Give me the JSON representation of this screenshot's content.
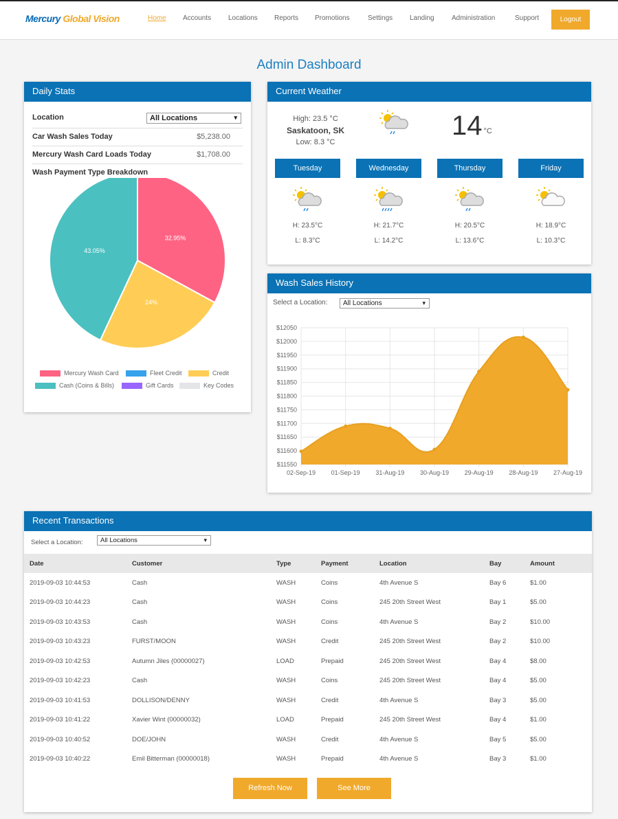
{
  "nav": {
    "logo_a": "Mercury",
    "logo_b": "Global Vision",
    "links": [
      "Home",
      "Accounts",
      "Locations",
      "Reports",
      "Promotions",
      "Settings",
      "Landing",
      "Administration",
      "Support"
    ],
    "active": "Home",
    "logout": "Logout"
  },
  "page_title": "Admin Dashboard",
  "daily": {
    "title": "Daily Stats",
    "location_label": "Location",
    "location_value": "All Locations",
    "rows": [
      {
        "label": "Car Wash Sales Today",
        "value": "$5,238.00"
      },
      {
        "label": "Mercury Wash Card Loads Today",
        "value": "$1,708.00"
      }
    ],
    "breakdown_label": "Wash Payment Type Breakdown",
    "pie": {
      "type": "pie",
      "slices": [
        {
          "name": "Mercury Wash Card",
          "value": 32.95,
          "label": "32.95%",
          "color": "#ff6384"
        },
        {
          "name": "Credit",
          "value": 24,
          "label": "24%",
          "color": "#ffcd56"
        },
        {
          "name": "Cash (Coins & Bills)",
          "value": 43.05,
          "label": "43.05%",
          "color": "#4bc0c0"
        }
      ],
      "legend": [
        {
          "name": "Mercury Wash Card",
          "color": "#ff6384"
        },
        {
          "name": "Fleet Credit",
          "color": "#36a2eb"
        },
        {
          "name": "Credit",
          "color": "#ffcd56"
        },
        {
          "name": "Cash (Coins & Bills)",
          "color": "#4bc0c0"
        },
        {
          "name": "Gift Cards",
          "color": "#9966ff"
        },
        {
          "name": "Key Codes",
          "color": "#e4e5e7"
        }
      ]
    }
  },
  "weather": {
    "title": "Current Weather",
    "high": "High: 23.5 °C",
    "city": "Saskatoon, SK",
    "low": "Low: 8.3 °C",
    "temp": "14",
    "unit": "°C",
    "icon": "sun-cloud-rain-icon",
    "days": [
      {
        "name": "Tuesday",
        "icon": "sun-cloud-rain-icon",
        "h": "H: 23.5°C",
        "l": "L: 8.3°C"
      },
      {
        "name": "Wednesday",
        "icon": "sun-cloud-heavy-rain-icon",
        "h": "H: 21.7°C",
        "l": "L: 14.2°C"
      },
      {
        "name": "Thursday",
        "icon": "sun-cloud-rain-icon",
        "h": "H: 20.5°C",
        "l": "L: 13.6°C"
      },
      {
        "name": "Friday",
        "icon": "sun-cloud-icon",
        "h": "H: 18.9°C",
        "l": "L: 10.3°C"
      }
    ]
  },
  "history": {
    "title": "Wash Sales History",
    "select_label": "Select a Location:",
    "select_value": "All Locations"
  },
  "chart_data": {
    "type": "area",
    "categories": [
      "02-Sep-19",
      "01-Sep-19",
      "31-Aug-19",
      "30-Aug-19",
      "29-Aug-19",
      "28-Aug-19",
      "27-Aug-19"
    ],
    "values": [
      11598,
      11690,
      11682,
      11605,
      11890,
      12015,
      11823
    ],
    "ylim": [
      11550,
      12050
    ],
    "yticks": [
      "$12050",
      "$12000",
      "$11950",
      "$11900",
      "$11850",
      "$11800",
      "$11750",
      "$11700",
      "$11650",
      "$11600",
      "$11550"
    ],
    "grid": true,
    "color": "#f0a92b"
  },
  "transactions": {
    "title": "Recent Transactions",
    "select_label": "Select a Location:",
    "select_value": "All Locations",
    "columns": [
      "Date",
      "Customer",
      "Type",
      "Payment",
      "Location",
      "Bay",
      "Amount"
    ],
    "rows": [
      [
        "2019-09-03 10:44:53",
        "Cash",
        "WASH",
        "Coins",
        "4th Avenue S",
        "Bay 6",
        "$1.00"
      ],
      [
        "2019-09-03 10:44:23",
        "Cash",
        "WASH",
        "Coins",
        "245 20th Street West",
        "Bay 1",
        "$5.00"
      ],
      [
        "2019-09-03 10:43:53",
        "Cash",
        "WASH",
        "Coins",
        "4th Avenue S",
        "Bay 2",
        "$10.00"
      ],
      [
        "2019-09-03 10:43:23",
        "FURST/MOON",
        "WASH",
        "Credit",
        "245 20th Street West",
        "Bay 2",
        "$10.00"
      ],
      [
        "2019-09-03 10:42:53",
        " Autumn Jiles (00000027)",
        "LOAD",
        "Prepaid",
        "245 20th Street West",
        "Bay 4",
        "$8.00"
      ],
      [
        "2019-09-03 10:42:23",
        "Cash",
        "WASH",
        "Coins",
        "245 20th Street West",
        "Bay 4",
        "$5.00"
      ],
      [
        "2019-09-03 10:41:53",
        "DOLLISON/DENNY",
        "WASH",
        "Credit",
        "4th Avenue S",
        "Bay 3",
        "$5.00"
      ],
      [
        "2019-09-03 10:41:22",
        " Xavier Wint (00000032)",
        "LOAD",
        "Prepaid",
        "245 20th Street West",
        "Bay 4",
        "$1.00"
      ],
      [
        "2019-09-03 10:40:52",
        "DOE/JOHN",
        "WASH",
        "Credit",
        "4th Avenue S",
        "Bay 5",
        "$5.00"
      ],
      [
        "2019-09-03 10:40:22",
        " Emil Bitterman (00000018)",
        "WASH",
        "Prepaid",
        "4th Avenue S",
        "Bay 3",
        "$1.00"
      ]
    ],
    "refresh": "Refresh Now",
    "more": "See More"
  }
}
